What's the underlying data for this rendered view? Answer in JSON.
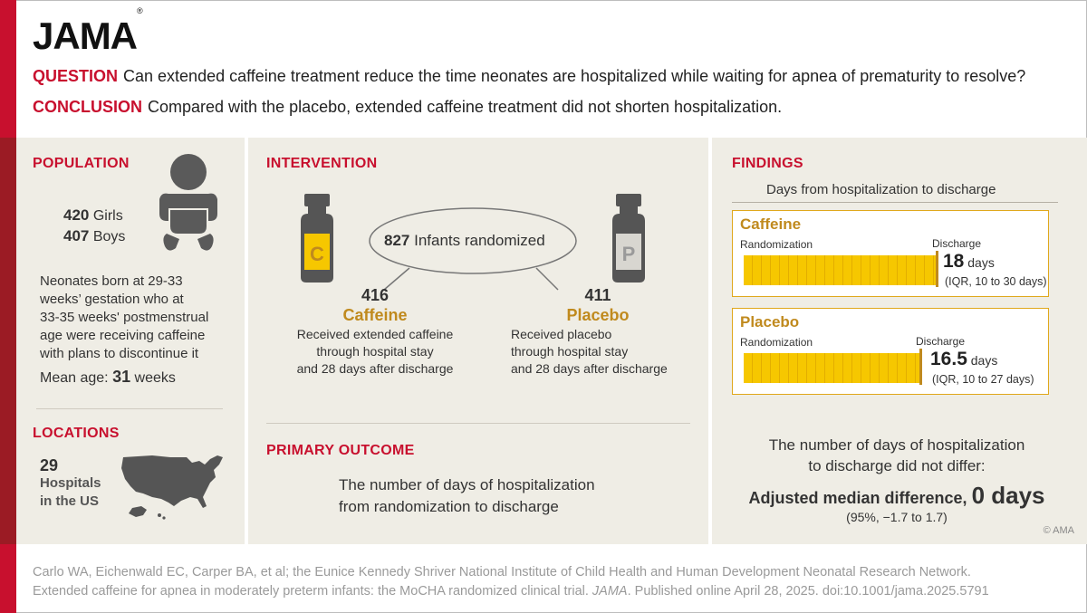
{
  "brand": {
    "logo": "JAMA",
    "reg": "®"
  },
  "header": {
    "question_key": "QUESTION",
    "question": "Can extended caffeine treatment reduce the time neonates are hospitalized while waiting for apnea of prematurity to resolve?",
    "conclusion_key": "CONCLUSION",
    "conclusion": "Compared with the placebo, extended caffeine treatment did not shorten hospitalization."
  },
  "population": {
    "title": "POPULATION",
    "girls_n": "420",
    "girls_label": "Girls",
    "boys_n": "407",
    "boys_label": "Boys",
    "desc": [
      "Neonates born at 29-33",
      "weeks’ gestation who at",
      "33-35 weeks' postmenstrual",
      "age were receiving caffeine",
      "with plans to discontinue it"
    ],
    "mean_age_label": "Mean age:",
    "mean_age_value": "31",
    "mean_age_unit": "weeks",
    "icon": "infant-icon"
  },
  "locations": {
    "title": "LOCATIONS",
    "count": "29",
    "label_1": "Hospitals",
    "label_2": "in the US",
    "icon": "us-map-icon"
  },
  "intervention": {
    "title": "INTERVENTION",
    "randomized_n": "827",
    "randomized_label": "Infants randomized",
    "caffeine": {
      "n": "416",
      "name": "Caffeine",
      "vial_letter": "C",
      "desc": [
        "Received extended caffeine",
        "through hospital stay",
        "and 28 days after discharge"
      ]
    },
    "placebo": {
      "n": "411",
      "name": "Placebo",
      "vial_letter": "P",
      "desc": [
        "Received placebo",
        "through hospital stay",
        "and 28 days after discharge"
      ]
    }
  },
  "primary_outcome": {
    "title": "PRIMARY OUTCOME",
    "text": [
      "The number of days of hospitalization",
      "from randomization to discharge"
    ]
  },
  "findings": {
    "title": "FINDINGS",
    "subtitle": "Days from hospitalization to discharge",
    "rand_label": "Randomization",
    "discharge_label": "Discharge",
    "caffeine": {
      "name": "Caffeine",
      "days": "18",
      "unit": "days",
      "iqr": "(IQR, 10 to 30 days)",
      "value": 18
    },
    "placebo": {
      "name": "Placebo",
      "days": "16.5",
      "unit": "days",
      "iqr": "(IQR, 10 to 27 days)",
      "value": 16.5
    },
    "summary_1": "The number of days of hospitalization",
    "summary_2": "to discharge did not differ:",
    "diff_label": "Adjusted median difference,",
    "diff_value": "0 days",
    "ci": "(95%, −1.7 to 1.7)",
    "copyright": "© AMA"
  },
  "footer": {
    "line1": "Carlo WA, Eichenwald EC, Carper BA, et al; the Eunice Kennedy Shriver National Institute of Child Health and Human Development Neonatal Research Network.",
    "line2_a": "Extended caffeine for apnea in moderately preterm infants: the MoCHA randomized clinical trial. ",
    "line2_journal": "JAMA",
    "line2_b": ". Published online April 28, 2025. doi:10.1001/jama.2025.5791"
  },
  "colors": {
    "accent_red": "#c8102e",
    "gold": "#c08a1e",
    "bar_yellow": "#f6c700",
    "panel_bg": "#efede5"
  }
}
